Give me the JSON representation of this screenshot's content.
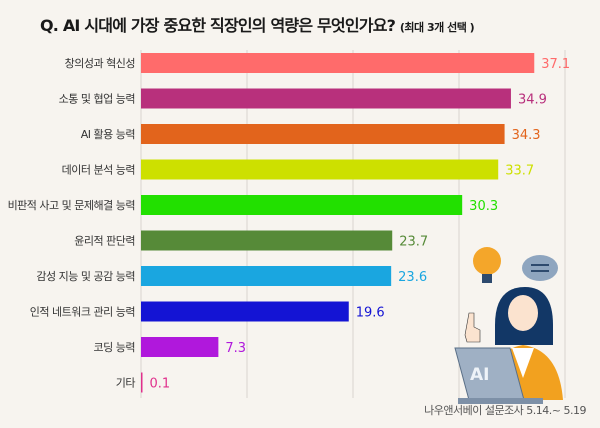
{
  "title": {
    "main": "Q. AI 시대에 가장 중요한 직장인의 역량은 무엇인가요?",
    "sub": "(최대 3개 선택 )"
  },
  "source": "나우앤서베이 설문조사 5.14.~ 5.19",
  "illustration": {
    "laptop_text": "AI"
  },
  "chart_data": {
    "type": "bar",
    "orientation": "horizontal",
    "title": "Q. AI 시대에 가장 중요한 직장인의 역량은 무엇인가요? (최대 3개 선택 )",
    "categories": [
      "창의성과 혁신성",
      "소통 및 협업 능력",
      "AI 활용 능력",
      "데이터 분석 능력",
      "비판적 사고 및 문제해결 능력",
      "윤리적 판단력",
      "감성 지능 및 공감 능력",
      "인적 네트워크 관리 능력",
      "코딩 능력",
      "기타"
    ],
    "values": [
      37.1,
      34.9,
      34.3,
      33.7,
      30.3,
      23.7,
      23.6,
      19.6,
      7.3,
      0.1
    ],
    "value_labels": [
      "37.1",
      "34.9",
      "34.3",
      "33.7",
      "30.3",
      "23.7",
      "23.6",
      "19.6",
      "7.3",
      "0.1"
    ],
    "colors": [
      "#ff6b6b",
      "#b8307c",
      "#e2641c",
      "#cde000",
      "#22e000",
      "#568a38",
      "#1aa6e0",
      "#1414d4",
      "#b018dc",
      "#e0308c"
    ],
    "xlim": [
      0,
      40
    ],
    "grid": true
  }
}
